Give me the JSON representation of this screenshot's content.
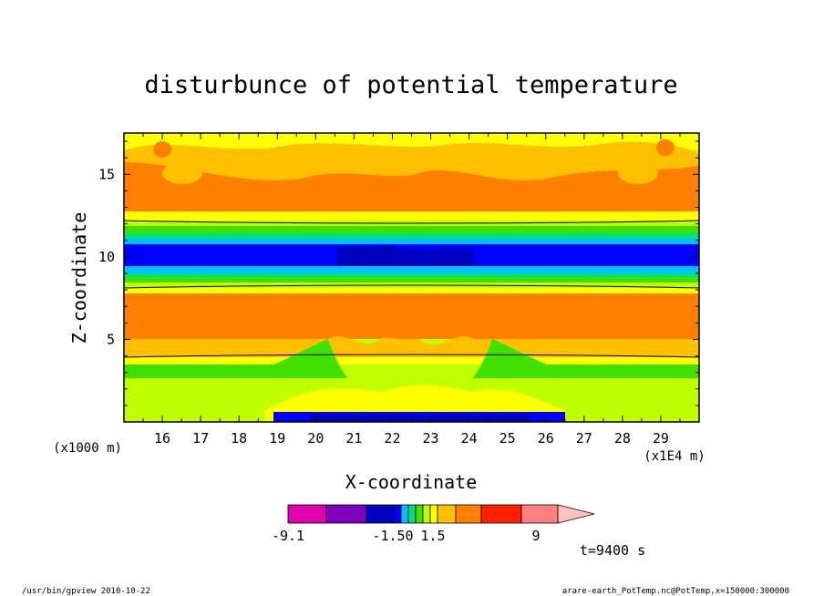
{
  "chart_data": {
    "type": "heatmap",
    "title": "disturbunce of potential temperature",
    "xlabel": "X-coordinate",
    "ylabel": "Z-coordinate",
    "x_unit_label": "(x1E4 m)",
    "y_unit_label": "(x1000 m)",
    "x_ticks": [
      "16",
      "17",
      "18",
      "19",
      "20",
      "21",
      "22",
      "23",
      "24",
      "25",
      "26",
      "27",
      "28",
      "29"
    ],
    "y_ticks": [
      "5",
      "10",
      "15"
    ],
    "xlim": [
      15,
      30
    ],
    "ylim": [
      0,
      17.5
    ],
    "colorbar": {
      "tick_labels": [
        "-9.1",
        "-1.50",
        "1.5",
        "9"
      ],
      "colors": [
        "#e000b0",
        "#8000c0",
        "#0000c0",
        "#0000ff",
        "#00c0ff",
        "#00e080",
        "#40e000",
        "#c0ff00",
        "#ffff00",
        "#ffc000",
        "#ff8000",
        "#ff2000",
        "#ff8080",
        "#ffc0c0"
      ]
    },
    "time_label": "t=9400 s",
    "footer_left": "/usr/bin/gpview   2010-10-22",
    "footer_right": "arare-earth_PotTemp.nc@PotTemp,x=150000:300000"
  }
}
